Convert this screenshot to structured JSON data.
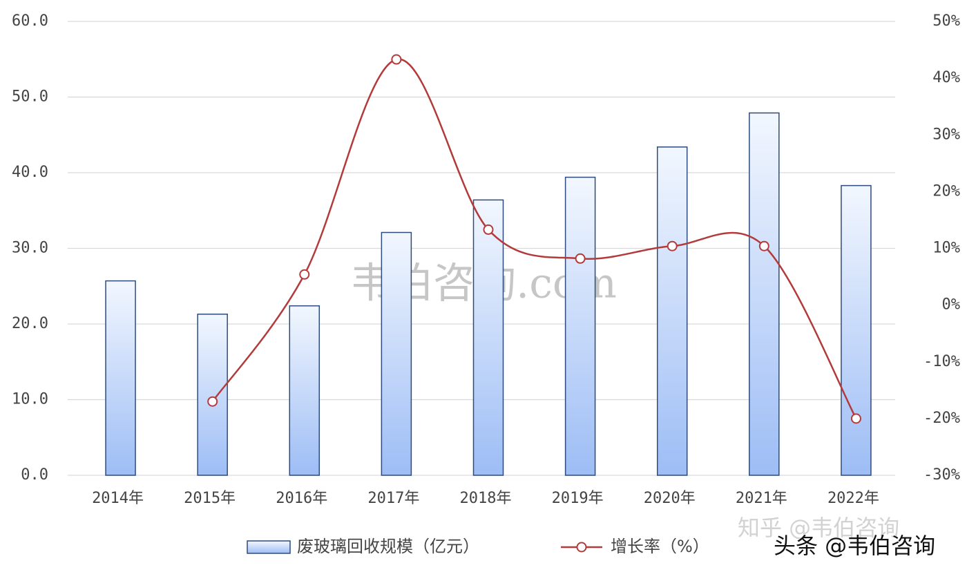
{
  "chart_data": {
    "type": "bar",
    "categories": [
      "2014年",
      "2015年",
      "2016年",
      "2017年",
      "2018年",
      "2019年",
      "2020年",
      "2021年",
      "2022年"
    ],
    "series": [
      {
        "name": "废玻璃回收规模（亿元）",
        "type": "bar",
        "color": "#9dbdf5",
        "values": [
          25.7,
          21.3,
          22.4,
          32.1,
          36.4,
          39.4,
          43.4,
          47.9,
          38.3
        ]
      },
      {
        "name": "增长率（%）",
        "type": "line",
        "axis": "y2",
        "color": "#b23a3a",
        "values": [
          null,
          -17.0,
          5.4,
          43.3,
          13.3,
          8.2,
          10.4,
          10.4,
          -20.0
        ]
      }
    ],
    "ylim": [
      0,
      60
    ],
    "yticks": [
      {
        "value": 0,
        "label": "0.0"
      },
      {
        "value": 10,
        "label": "10.0"
      },
      {
        "value": 20,
        "label": "20.0"
      },
      {
        "value": 30,
        "label": "30.0"
      },
      {
        "value": 40,
        "label": "40.0"
      },
      {
        "value": 50,
        "label": "50.0"
      },
      {
        "value": 60,
        "label": "60.0"
      }
    ],
    "y2lim": [
      -30,
      50
    ],
    "y2ticks": [
      {
        "value": -30,
        "label": "-30%"
      },
      {
        "value": -20,
        "label": "-20%"
      },
      {
        "value": -10,
        "label": "-10%"
      },
      {
        "value": 0,
        "label": "0%"
      },
      {
        "value": 10,
        "label": "10%"
      },
      {
        "value": 20,
        "label": "20%"
      },
      {
        "value": 30,
        "label": "30%"
      },
      {
        "value": 40,
        "label": "40%"
      },
      {
        "value": 50,
        "label": "50%"
      }
    ],
    "grid": true,
    "legend": "bottom",
    "watermarks": [
      "韦伯咨询.com",
      "知乎 @韦伯咨询",
      "头条 @韦伯咨询"
    ]
  }
}
